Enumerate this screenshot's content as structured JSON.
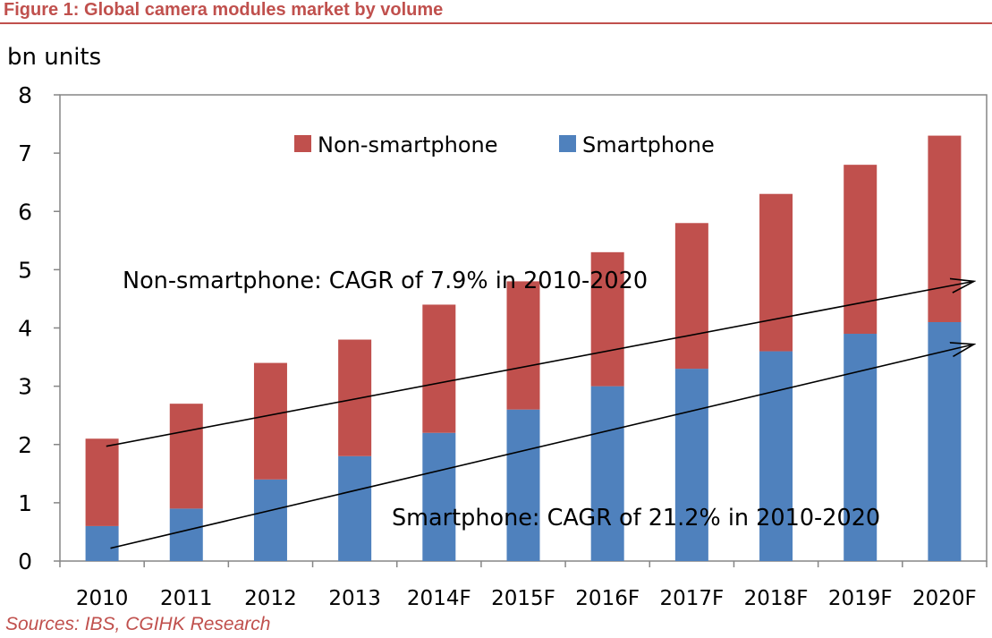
{
  "figure": {
    "title": "Figure 1:  Global camera modules market by volume",
    "source": "Sources: IBS, CGIHK Research",
    "accent_color": "#C0504D"
  },
  "chart_data": {
    "type": "bar",
    "stacked": true,
    "ylabel": "bn units",
    "xlabel": "",
    "ylim": [
      0,
      8
    ],
    "yticks": [
      0,
      1,
      2,
      3,
      4,
      5,
      6,
      7,
      8
    ],
    "grid": false,
    "legend_position": "top",
    "categories": [
      "2010",
      "2011",
      "2012",
      "2013",
      "2014F",
      "2015F",
      "2016F",
      "2017F",
      "2018F",
      "2019F",
      "2020F"
    ],
    "series": [
      {
        "name": "Smartphone",
        "color": "#4F81BD",
        "values": [
          0.6,
          0.9,
          1.4,
          1.8,
          2.2,
          2.6,
          3.0,
          3.3,
          3.6,
          3.9,
          4.1
        ]
      },
      {
        "name": "Non-smartphone",
        "color": "#C0504D",
        "values": [
          1.5,
          1.8,
          2.0,
          2.0,
          2.2,
          2.2,
          2.3,
          2.5,
          2.7,
          2.9,
          3.2
        ]
      }
    ],
    "totals": [
      2.1,
      2.7,
      3.4,
      3.8,
      4.4,
      4.8,
      5.3,
      5.8,
      6.3,
      6.8,
      7.3
    ],
    "legend_order": [
      "Non-smartphone",
      "Smartphone"
    ],
    "annotations": [
      {
        "text": "Non-smartphone: CAGR of 7.9% in 2010-2020",
        "arrow": {
          "from": [
            0.55,
            1.97
          ],
          "to": [
            10.85,
            4.8
          ]
        }
      },
      {
        "text": "Smartphone: CAGR of 21.2% in 2010-2020",
        "arrow": {
          "from": [
            0.6,
            0.22
          ],
          "to": [
            10.85,
            3.72
          ]
        }
      }
    ]
  }
}
